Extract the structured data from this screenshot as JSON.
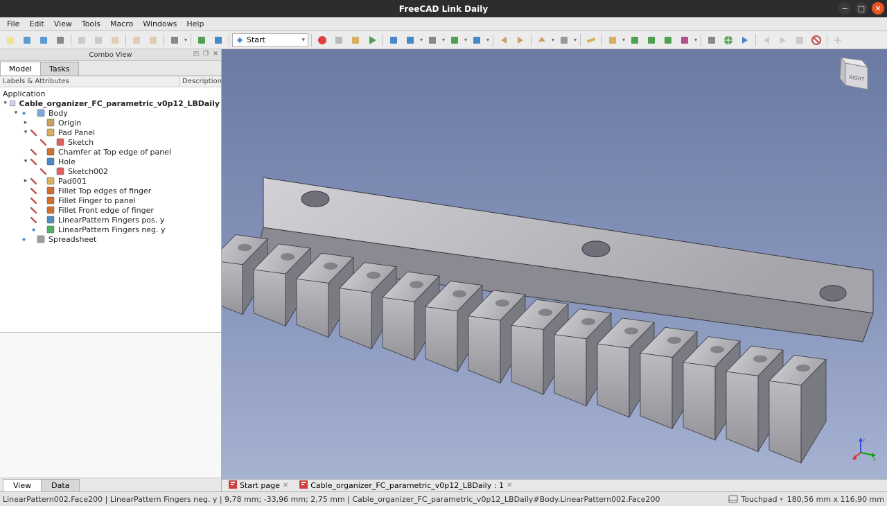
{
  "app_title": "FreeCAD Link Daily",
  "menu": [
    "File",
    "Edit",
    "View",
    "Tools",
    "Macro",
    "Windows",
    "Help"
  ],
  "workbench_selector": "Start",
  "combo": {
    "title": "Combo View",
    "tabs": {
      "model": "Model",
      "tasks": "Tasks"
    },
    "header": {
      "labels": "Labels & Attributes",
      "desc": "Description"
    },
    "root": "Application",
    "doc": "Cable_organizer_FC_parametric_v0p12_LBDaily",
    "tree": [
      {
        "lvl": 3,
        "label": "Body",
        "ico": "#7aa8d8",
        "toggle": "▾",
        "eye": true
      },
      {
        "lvl": 4,
        "label": "Origin",
        "ico": "#caa060",
        "toggle": "▸"
      },
      {
        "lvl": 4,
        "label": "Pad Panel",
        "ico": "#d8b060",
        "toggle": "▾",
        "noeye": true
      },
      {
        "lvl": 5,
        "label": "Sketch",
        "ico": "#e06060",
        "noeye": true
      },
      {
        "lvl": 4,
        "label": "Chamfer at Top edge of panel",
        "ico": "#d07030",
        "noeye": true
      },
      {
        "lvl": 4,
        "label": "Hole",
        "ico": "#4a88c7",
        "toggle": "▾",
        "noeye": true
      },
      {
        "lvl": 5,
        "label": "Sketch002",
        "ico": "#e06060",
        "noeye": true
      },
      {
        "lvl": 4,
        "label": "Pad001",
        "ico": "#d8b060",
        "toggle": "▸",
        "noeye": true
      },
      {
        "lvl": 4,
        "label": "Fillet Top edges of finger",
        "ico": "#d07030",
        "noeye": true
      },
      {
        "lvl": 4,
        "label": "Fillet Finger to panel",
        "ico": "#d07030",
        "noeye": true
      },
      {
        "lvl": 4,
        "label": "Fillet Front edge of finger",
        "ico": "#d07030",
        "noeye": true
      },
      {
        "lvl": 4,
        "label": "LinearPattern Fingers pos. y",
        "ico": "#5090c0",
        "noeye": true
      },
      {
        "lvl": 4,
        "label": "LinearPattern Fingers neg. y",
        "ico": "#50b060",
        "eye": true
      },
      {
        "lvl": 3,
        "label": "Spreadsheet",
        "ico": "#9aa0a6",
        "toggle": "",
        "eye": true
      }
    ],
    "prop_tabs": {
      "view": "View",
      "data": "Data"
    }
  },
  "mdi": {
    "start": "Start page",
    "doc": "Cable_organizer_FC_parametric_v0p12_LBDaily : 1"
  },
  "status": {
    "left": "LinearPattern002.Face200 | LinearPattern Fingers neg. y | 9,78 mm; -33,96 mm; 2,75 mm | Cable_organizer_FC_parametric_v0p12_LBDaily#Body.LinearPattern002.Face200",
    "nav": "Touchpad",
    "dims": "180,56 mm x 116,90 mm"
  },
  "navcube_face": "RIGHT",
  "viewport": {
    "bg_top": "#6b7aa3",
    "bg_bottom": "#a8b4d2",
    "model_color": "#b8b8bc",
    "model_shadow": "#7a7a82",
    "edge_color": "#3a3a40"
  },
  "toolbar_icons": [
    "new-file",
    "open-file",
    "save-file",
    "print",
    "",
    "cut",
    "copy",
    "paste",
    "",
    "undo",
    "redo",
    "",
    "refresh",
    "",
    "reload",
    "whatsthis",
    "",
    "WB",
    "",
    "record-macro",
    "stop-macro",
    "macros",
    "run-macro",
    "",
    "fit-all",
    "zoom",
    "draw-style",
    "view-iso",
    "bbox",
    "",
    "nav-back",
    "nav-fwd",
    "",
    "nav-up",
    "nav-link",
    "",
    "measure",
    "",
    "part-box",
    "link",
    "link-import",
    "link-group",
    "axis",
    "",
    "print-preview",
    "globe",
    "goto",
    "",
    "link-back",
    "link-fwd",
    "link-refresh",
    "link-stop",
    "",
    "add"
  ]
}
